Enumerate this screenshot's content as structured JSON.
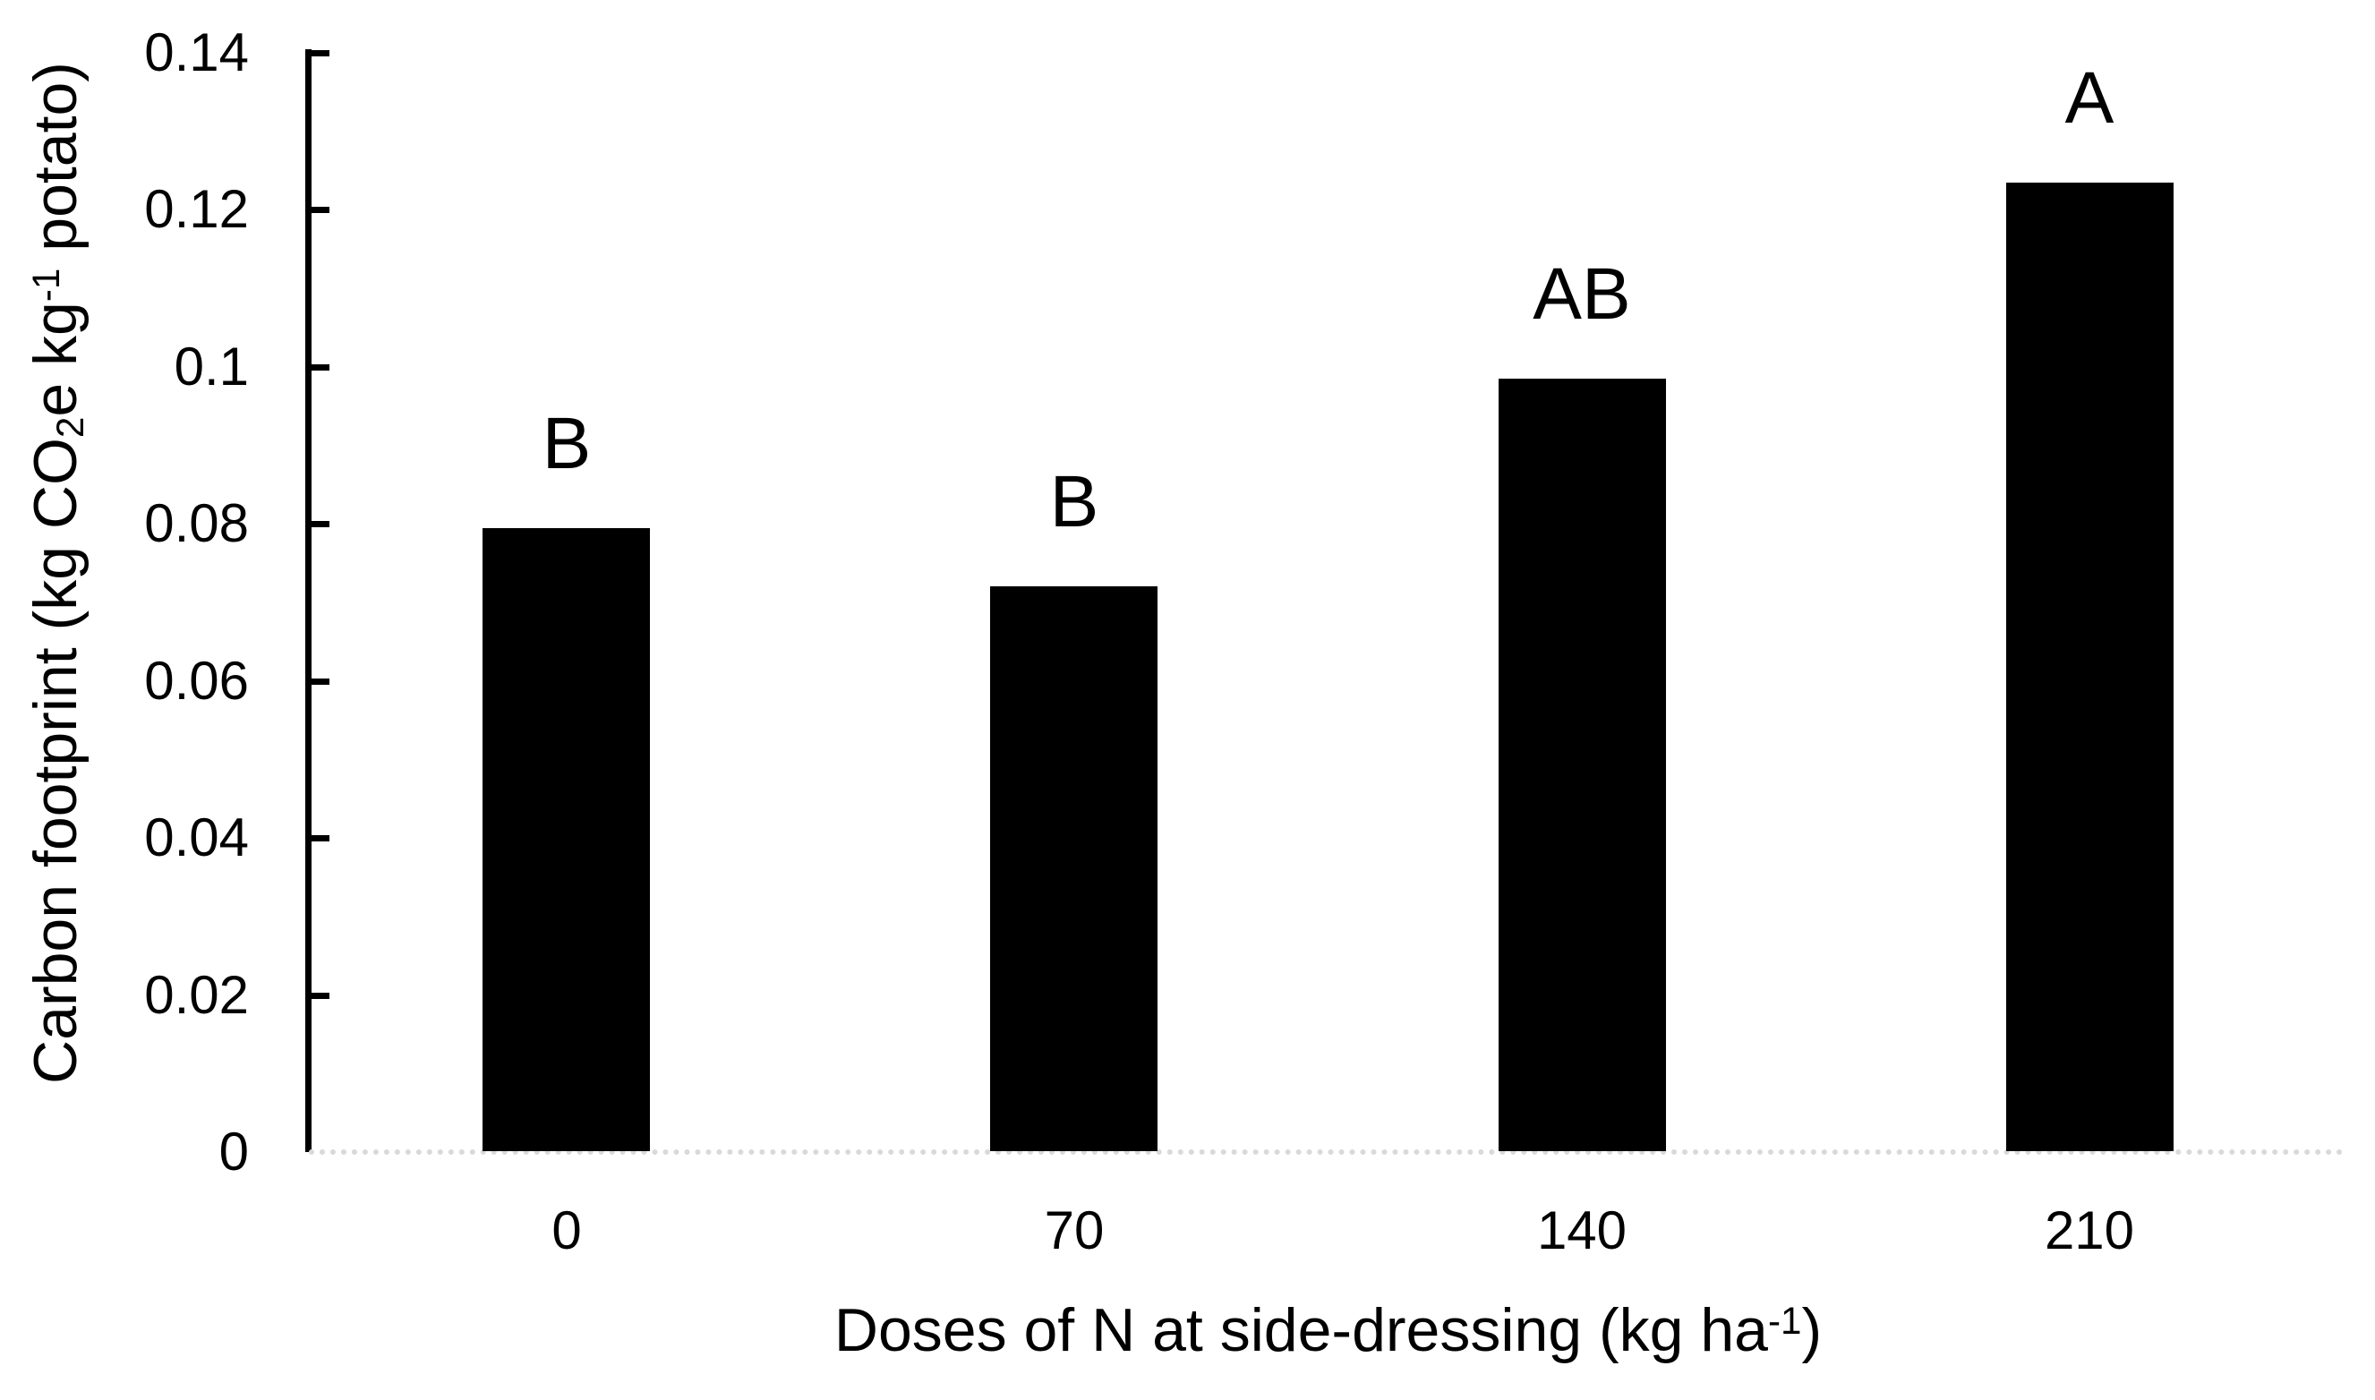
{
  "chart_data": {
    "type": "bar",
    "title": "",
    "categories": [
      "0",
      "70",
      "140",
      "210"
    ],
    "values": [
      0.0795,
      0.072,
      0.0985,
      0.1235
    ],
    "bar_labels": [
      "B",
      "B",
      "AB",
      "A"
    ],
    "xlabel": "Doses of N at side-dressing (kg ha⁻¹)",
    "ylabel": "Carbon footprint (kg CO₂e kg⁻¹ potato)",
    "ylim": [
      0,
      0.14
    ],
    "ytick_interval": 0.02,
    "ytick_labels": [
      "0",
      "0.02",
      "0.04",
      "0.06",
      "0.08",
      "0.1",
      "0.12",
      "0.14"
    ],
    "bar_color": "#000000",
    "text_color": "#000000",
    "baseline_color": "#d9d9d9",
    "grid": false,
    "legend": "none"
  },
  "ylabel_parts": {
    "pre": "Carbon footprint (kg CO",
    "sub": "2",
    "mid": "e kg",
    "sup": "-1",
    "post": " potato)"
  },
  "xlabel_parts": {
    "pre": "Doses of N at side-dressing (kg ha",
    "sup": "-1",
    "post": ")"
  }
}
